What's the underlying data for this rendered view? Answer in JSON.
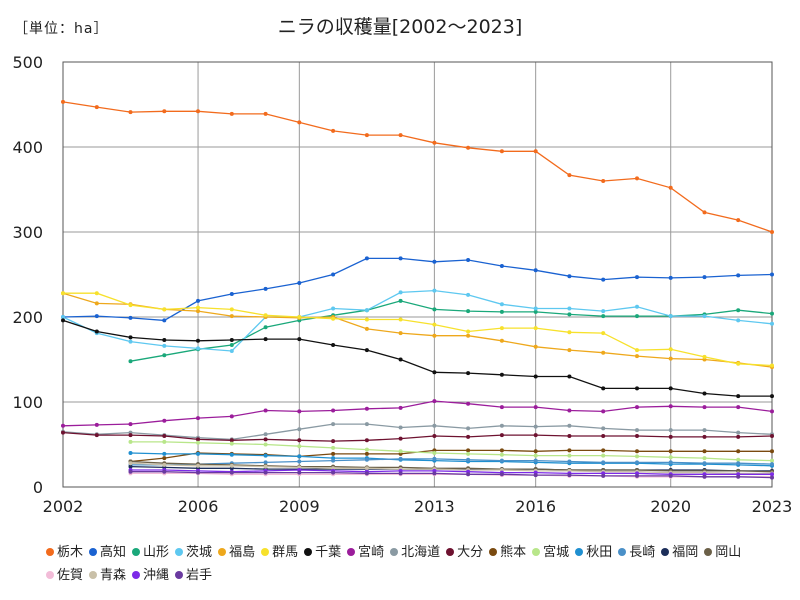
{
  "chart_data": {
    "type": "line",
    "title": "ニラの収穫量[2002～2023]",
    "unit_label": "［単位：ha］",
    "xlabel": "",
    "ylabel": "",
    "x_range": [
      2002,
      2023
    ],
    "ylim": [
      0,
      500
    ],
    "x_ticks": [
      2002,
      2006,
      2009,
      2013,
      2016,
      2020,
      2023
    ],
    "y_ticks": [
      0,
      100,
      200,
      300,
      400,
      500
    ],
    "grid": true,
    "legend_position": "bottom",
    "series": [
      {
        "name": "栃木",
        "color": "#f26b1d",
        "x": [
          2002,
          2003,
          2004,
          2005,
          2006,
          2007,
          2008,
          2009,
          2010,
          2011,
          2012,
          2013,
          2014,
          2015,
          2016,
          2017,
          2018,
          2019,
          2020,
          2021,
          2022,
          2023
        ],
        "values": [
          453,
          447,
          441,
          442,
          442,
          439,
          439,
          429,
          419,
          414,
          414,
          405,
          399,
          395,
          395,
          367,
          360,
          363,
          352,
          323,
          314,
          300
        ]
      },
      {
        "name": "高知",
        "color": "#1a62d1",
        "x": [
          2002,
          2003,
          2004,
          2005,
          2006,
          2007,
          2008,
          2009,
          2010,
          2011,
          2012,
          2013,
          2014,
          2015,
          2016,
          2017,
          2018,
          2019,
          2020,
          2021,
          2022,
          2023
        ],
        "values": [
          200,
          201,
          199,
          196,
          219,
          227,
          233,
          240,
          250,
          269,
          269,
          265,
          267,
          260,
          255,
          248,
          244,
          247,
          246,
          247,
          249,
          250
        ]
      },
      {
        "name": "山形",
        "color": "#1aa87a",
        "x": [
          2004,
          2005,
          2006,
          2007,
          2008,
          2009,
          2010,
          2011,
          2012,
          2013,
          2014,
          2015,
          2016,
          2017,
          2018,
          2019,
          2020,
          2021,
          2022,
          2023
        ],
        "values": [
          148,
          155,
          162,
          167,
          188,
          196,
          202,
          208,
          219,
          209,
          207,
          206,
          206,
          203,
          201,
          201,
          201,
          203,
          208,
          204
        ]
      },
      {
        "name": "茨城",
        "color": "#5ec8f0",
        "x": [
          2002,
          2003,
          2004,
          2005,
          2006,
          2007,
          2008,
          2009,
          2010,
          2011,
          2012,
          2013,
          2014,
          2015,
          2016,
          2017,
          2018,
          2019,
          2020,
          2021,
          2022,
          2023
        ],
        "values": [
          200,
          181,
          171,
          166,
          163,
          160,
          200,
          200,
          210,
          208,
          229,
          231,
          226,
          215,
          210,
          210,
          207,
          212,
          201,
          201,
          196,
          192
        ]
      },
      {
        "name": "福島",
        "color": "#eea81c",
        "x": [
          2002,
          2003,
          2004,
          2005,
          2006,
          2007,
          2008,
          2009,
          2010,
          2011,
          2012,
          2013,
          2014,
          2015,
          2016,
          2017,
          2018,
          2019,
          2020,
          2021,
          2022,
          2023
        ],
        "values": [
          228,
          216,
          215,
          209,
          207,
          201,
          200,
          199,
          200,
          186,
          181,
          178,
          178,
          172,
          165,
          161,
          158,
          154,
          151,
          150,
          146,
          141
        ]
      },
      {
        "name": "群馬",
        "color": "#f7e12c",
        "x": [
          2002,
          2003,
          2004,
          2005,
          2006,
          2007,
          2008,
          2009,
          2010,
          2011,
          2012,
          2013,
          2014,
          2015,
          2016,
          2017,
          2018,
          2019,
          2020,
          2021,
          2022,
          2023
        ],
        "values": [
          228,
          228,
          214,
          209,
          211,
          209,
          202,
          200,
          198,
          197,
          197,
          191,
          183,
          187,
          187,
          182,
          181,
          161,
          162,
          153,
          145,
          143
        ]
      },
      {
        "name": "千葉",
        "color": "#111111",
        "x": [
          2002,
          2003,
          2004,
          2005,
          2006,
          2007,
          2008,
          2009,
          2010,
          2011,
          2012,
          2013,
          2014,
          2015,
          2016,
          2017,
          2018,
          2019,
          2020,
          2021,
          2022,
          2023
        ],
        "values": [
          196,
          183,
          176,
          173,
          172,
          173,
          174,
          174,
          167,
          161,
          150,
          135,
          134,
          132,
          130,
          130,
          116,
          116,
          116,
          110,
          107,
          107
        ]
      },
      {
        "name": "宮崎",
        "color": "#9b1d9b",
        "x": [
          2002,
          2003,
          2004,
          2005,
          2006,
          2007,
          2008,
          2009,
          2010,
          2011,
          2012,
          2013,
          2014,
          2015,
          2016,
          2017,
          2018,
          2019,
          2020,
          2021,
          2022,
          2023
        ],
        "values": [
          72,
          73,
          74,
          78,
          81,
          83,
          90,
          89,
          90,
          92,
          93,
          101,
          98,
          94,
          94,
          90,
          89,
          94,
          95,
          94,
          94,
          89
        ]
      },
      {
        "name": "北海道",
        "color": "#8a9aa3",
        "x": [
          2002,
          2003,
          2004,
          2005,
          2006,
          2007,
          2008,
          2009,
          2010,
          2011,
          2012,
          2013,
          2014,
          2015,
          2016,
          2017,
          2018,
          2019,
          2020,
          2021,
          2022,
          2023
        ],
        "values": [
          65,
          62,
          64,
          61,
          58,
          56,
          62,
          68,
          74,
          74,
          70,
          72,
          69,
          72,
          71,
          72,
          69,
          67,
          67,
          67,
          64,
          62
        ]
      },
      {
        "name": "大分",
        "color": "#6e1230",
        "x": [
          2002,
          2003,
          2004,
          2005,
          2006,
          2007,
          2008,
          2009,
          2010,
          2011,
          2012,
          2013,
          2014,
          2015,
          2016,
          2017,
          2018,
          2019,
          2020,
          2021,
          2022,
          2023
        ],
        "values": [
          64,
          61,
          61,
          60,
          56,
          55,
          56,
          55,
          54,
          55,
          57,
          60,
          59,
          61,
          61,
          60,
          60,
          60,
          59,
          59,
          59,
          60
        ]
      },
      {
        "name": "熊本",
        "color": "#7a4a10",
        "x": [
          2004,
          2005,
          2006,
          2007,
          2008,
          2009,
          2010,
          2011,
          2012,
          2013,
          2014,
          2015,
          2016,
          2017,
          2018,
          2019,
          2020,
          2021,
          2022,
          2023
        ],
        "values": [
          30,
          34,
          40,
          39,
          38,
          36,
          39,
          39,
          39,
          43,
          43,
          43,
          42,
          43,
          43,
          42,
          42,
          42,
          42,
          42
        ]
      },
      {
        "name": "宮城",
        "color": "#b8e68a",
        "x": [
          2004,
          2005,
          2006,
          2007,
          2008,
          2009,
          2010,
          2011,
          2012,
          2013,
          2014,
          2015,
          2016,
          2017,
          2018,
          2019,
          2020,
          2021,
          2022,
          2023
        ],
        "values": [
          53,
          53,
          52,
          51,
          50,
          48,
          46,
          44,
          42,
          40,
          39,
          38,
          37,
          37,
          37,
          36,
          35,
          34,
          32,
          31
        ]
      },
      {
        "name": "秋田",
        "color": "#1f8fd0",
        "x": [
          2004,
          2005,
          2006,
          2007,
          2008,
          2009,
          2010,
          2011,
          2012,
          2013,
          2014,
          2015,
          2016,
          2017,
          2018,
          2019,
          2020,
          2021,
          2022,
          2023
        ],
        "values": [
          40,
          39,
          39,
          38,
          37,
          36,
          34,
          34,
          32,
          31,
          30,
          30,
          29,
          28,
          28,
          28,
          27,
          27,
          26,
          25
        ]
      },
      {
        "name": "長崎",
        "color": "#4a90c8",
        "x": [
          2004,
          2005,
          2006,
          2007,
          2008,
          2009,
          2010,
          2011,
          2012,
          2013,
          2014,
          2015,
          2016,
          2017,
          2018,
          2019,
          2020,
          2021,
          2022,
          2023
        ],
        "values": [
          26,
          26,
          27,
          28,
          29,
          30,
          31,
          32,
          33,
          33,
          32,
          31,
          31,
          30,
          29,
          29,
          29,
          28,
          28,
          27
        ]
      },
      {
        "name": "福岡",
        "color": "#1c2e5a",
        "x": [
          2004,
          2005,
          2006,
          2007,
          2008,
          2009,
          2010,
          2011,
          2012,
          2013,
          2014,
          2015,
          2016,
          2017,
          2018,
          2019,
          2020,
          2021,
          2022,
          2023
        ],
        "values": [
          24,
          23,
          22,
          22,
          21,
          21,
          21,
          21,
          21,
          21,
          21,
          21,
          21,
          20,
          20,
          20,
          20,
          20,
          19,
          19
        ]
      },
      {
        "name": "岡山",
        "color": "#6b6048",
        "x": [
          2004,
          2005,
          2006,
          2007,
          2008,
          2009,
          2010,
          2011,
          2012,
          2013,
          2014,
          2015,
          2016,
          2017,
          2018,
          2019,
          2020,
          2021,
          2022,
          2023
        ],
        "values": [
          30,
          28,
          27,
          26,
          25,
          24,
          24,
          23,
          23,
          22,
          22,
          21,
          21,
          20,
          20,
          20,
          19,
          19,
          19,
          18
        ]
      },
      {
        "name": "佐賀",
        "color": "#f2bcd8",
        "x": [
          2004,
          2005,
          2006,
          2007,
          2008,
          2009,
          2010,
          2011,
          2012,
          2013,
          2014,
          2015,
          2016,
          2017,
          2018,
          2019,
          2020,
          2021,
          2022,
          2023
        ],
        "values": [
          16,
          16,
          16,
          15,
          15,
          15,
          15,
          15,
          15,
          15,
          15,
          14,
          14,
          13,
          13,
          12,
          12,
          12,
          12,
          12
        ]
      },
      {
        "name": "青森",
        "color": "#c9c0a8",
        "x": [
          2004,
          2005,
          2006,
          2007,
          2008,
          2009,
          2010,
          2011,
          2012,
          2013,
          2014,
          2015,
          2016,
          2017,
          2018,
          2019,
          2020,
          2021,
          2022,
          2023
        ],
        "values": [
          28,
          26,
          25,
          25,
          24,
          23,
          22,
          22,
          21,
          21,
          20,
          20,
          19,
          19,
          18,
          18,
          17,
          17,
          16,
          16
        ]
      },
      {
        "name": "沖縄",
        "color": "#7d2ae8",
        "x": [
          2004,
          2005,
          2006,
          2007,
          2008,
          2009,
          2010,
          2011,
          2012,
          2013,
          2014,
          2015,
          2016,
          2017,
          2018,
          2019,
          2020,
          2021,
          2022,
          2023
        ],
        "values": [
          20,
          20,
          19,
          18,
          19,
          20,
          19,
          18,
          19,
          19,
          18,
          17,
          17,
          16,
          16,
          16,
          15,
          15,
          15,
          15
        ]
      },
      {
        "name": "岩手",
        "color": "#6a3aa0",
        "x": [
          2004,
          2005,
          2006,
          2007,
          2008,
          2009,
          2010,
          2011,
          2012,
          2013,
          2014,
          2015,
          2016,
          2017,
          2018,
          2019,
          2020,
          2021,
          2022,
          2023
        ],
        "values": [
          18,
          18,
          17,
          17,
          17,
          17,
          17,
          16,
          16,
          16,
          15,
          15,
          14,
          14,
          13,
          13,
          13,
          12,
          12,
          11
        ]
      }
    ]
  }
}
